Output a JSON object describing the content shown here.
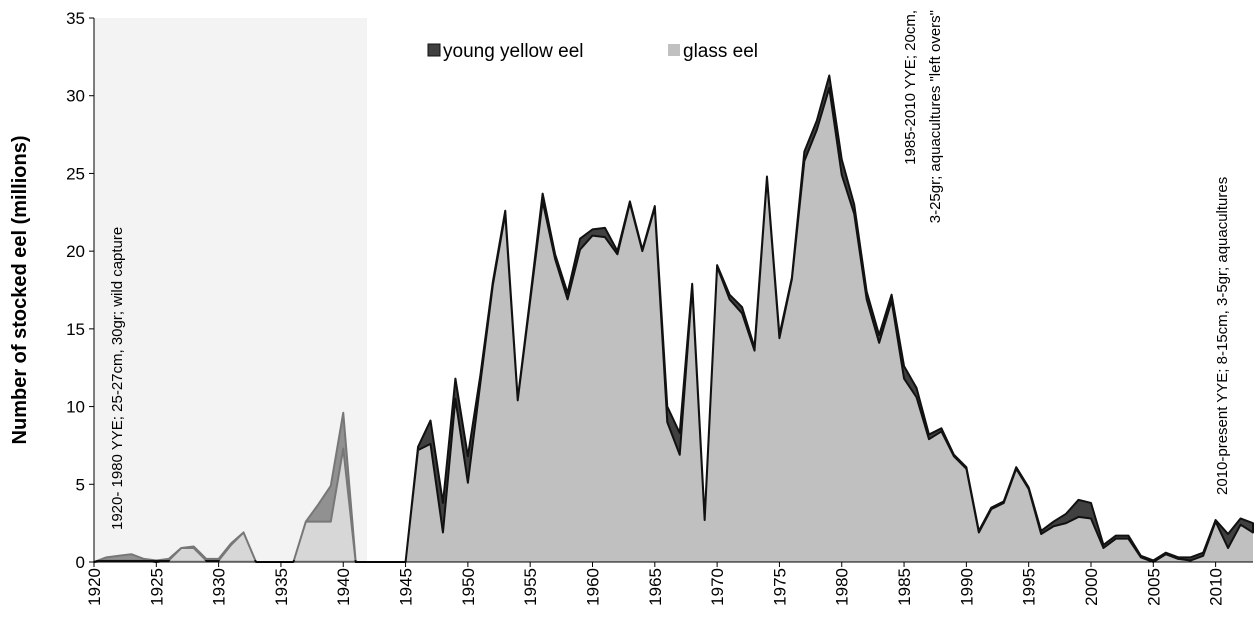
{
  "chart_data": {
    "type": "stacked-area",
    "y_label": "Number of stocked eel (millions)",
    "annotations": [
      "1920- 1980 YYE; 25-27cm, 30gr; wild capture",
      "1985-2010 YYE; 20cm,",
      "3-25gr; aquacultures  \"left overs\"",
      "2010-present YYE; 8-15cm, 3-5gr; aquacultures"
    ],
    "x": [
      1920,
      1921,
      1922,
      1923,
      1924,
      1925,
      1926,
      1927,
      1928,
      1929,
      1930,
      1931,
      1932,
      1933,
      1934,
      1935,
      1936,
      1937,
      1938,
      1939,
      1940,
      1941,
      1942,
      1943,
      1944,
      1945,
      1946,
      1947,
      1948,
      1949,
      1950,
      1951,
      1952,
      1953,
      1954,
      1955,
      1956,
      1957,
      1958,
      1959,
      1960,
      1961,
      1962,
      1963,
      1964,
      1965,
      1966,
      1967,
      1968,
      1969,
      1970,
      1971,
      1972,
      1973,
      1974,
      1975,
      1976,
      1977,
      1978,
      1979,
      1980,
      1981,
      1982,
      1983,
      1984,
      1985,
      1986,
      1987,
      1988,
      1989,
      1990,
      1991,
      1992,
      1993,
      1994,
      1995,
      1996,
      1997,
      1998,
      1999,
      2000,
      2001,
      2002,
      2003,
      2004,
      2005,
      2006,
      2007,
      2008,
      2009,
      2010,
      2011,
      2012,
      2013
    ],
    "series": [
      {
        "name": "young yellow eel",
        "color": "#404040",
        "values": [
          0,
          0.2,
          0.3,
          0.4,
          0.1,
          0.1,
          0.1,
          0,
          0.1,
          0.1,
          0.1,
          0.1,
          0,
          0,
          0,
          0,
          0,
          0,
          1.1,
          2.3,
          2.3,
          0,
          0,
          0,
          0,
          0,
          0.2,
          1.5,
          1.9,
          1.3,
          1.7,
          0.5,
          0.2,
          0.2,
          0.1,
          0.2,
          0.5,
          0.3,
          0.4,
          0.7,
          0.4,
          0.6,
          0.2,
          0.1,
          0.1,
          0.1,
          1.0,
          1.4,
          0.2,
          0.1,
          0.1,
          0.3,
          0.4,
          0.2,
          0.1,
          0.2,
          0.1,
          0.6,
          0.6,
          0.8,
          1.0,
          0.6,
          0.5,
          0.5,
          0.4,
          0.8,
          0.6,
          0.3,
          0.2,
          0.1,
          0.1,
          0.1,
          0.1,
          0.1,
          0.1,
          0.1,
          0.2,
          0.3,
          0.6,
          1.1,
          1.0,
          0.2,
          0.2,
          0.2,
          0.1,
          0.1,
          0.1,
          0.1,
          0.2,
          0.2,
          0.1,
          0.9,
          0.4,
          0.6
        ]
      },
      {
        "name": "glass eel",
        "color": "#c0c0c0",
        "values": [
          0,
          0.1,
          0.1,
          0.1,
          0.1,
          0,
          0.1,
          0.9,
          0.9,
          0.1,
          0.1,
          1.1,
          1.9,
          0,
          0,
          0,
          0,
          2.6,
          2.6,
          2.6,
          7.3,
          0,
          0,
          0,
          0,
          0,
          7.2,
          7.6,
          1.9,
          10.5,
          5.1,
          11.5,
          17.8,
          22.4,
          10.4,
          16.8,
          23.2,
          19.5,
          16.9,
          20.1,
          21.0,
          20.9,
          19.8,
          23.1,
          20.0,
          22.8,
          9.0,
          6.9,
          17.7,
          2.7,
          19.0,
          16.9,
          16.0,
          13.6,
          24.7,
          14.4,
          18.2,
          25.8,
          27.8,
          30.5,
          24.9,
          22.4,
          16.9,
          14.1,
          16.8,
          11.8,
          10.6,
          7.9,
          8.4,
          6.8,
          6.0,
          1.9,
          3.4,
          3.8,
          6.0,
          4.7,
          1.8,
          2.3,
          2.5,
          2.9,
          2.8,
          0.9,
          1.5,
          1.5,
          0.3,
          0,
          0.5,
          0.2,
          0.1,
          0.4,
          2.6,
          0.9,
          2.4,
          1.9
        ]
      }
    ],
    "xlim": [
      1920,
      2013
    ],
    "xticks": [
      1920,
      1925,
      1930,
      1935,
      1940,
      1945,
      1950,
      1955,
      1960,
      1965,
      1970,
      1975,
      1980,
      1985,
      1990,
      1995,
      2000,
      2005,
      2010
    ],
    "ylim": [
      0,
      35
    ],
    "yticks": [
      0,
      5,
      10,
      15,
      20,
      25,
      30,
      35
    ],
    "grid": false,
    "legend": "top"
  }
}
